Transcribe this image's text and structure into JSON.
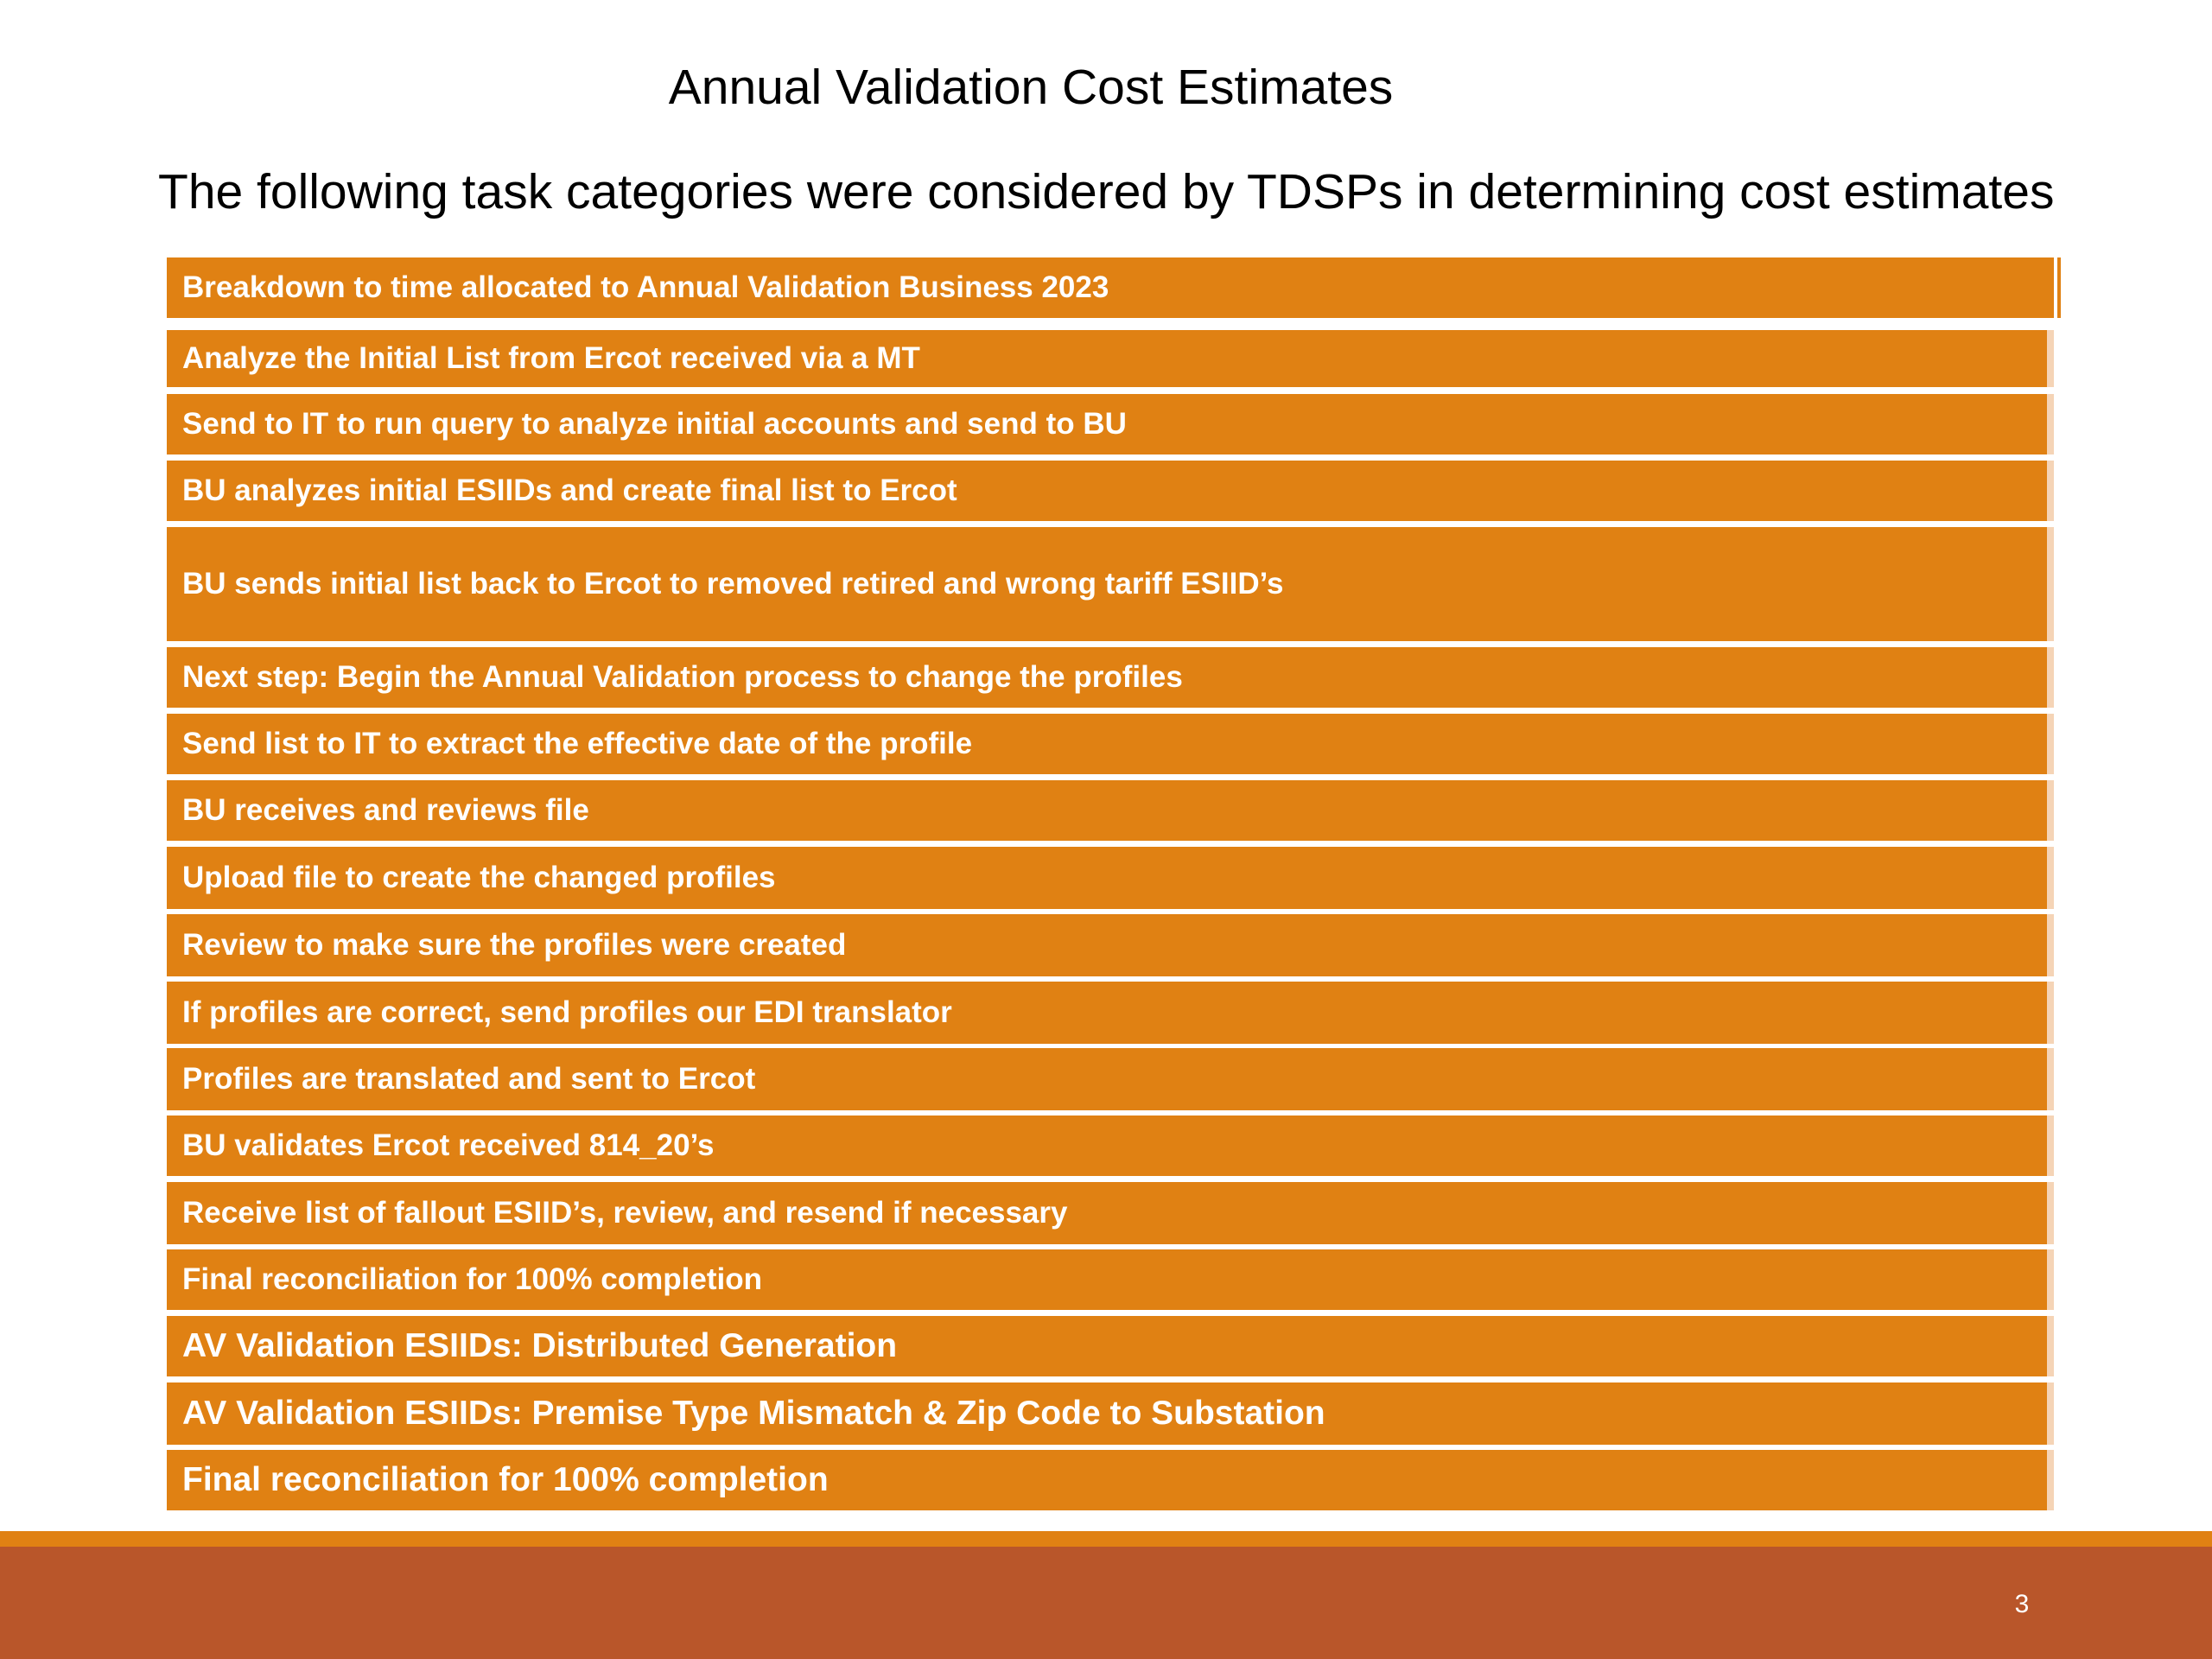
{
  "slide": {
    "title": "Annual Validation Cost Estimates",
    "subtitle": "The following task categories were considered by TDSPs in determining cost estimates",
    "page_number": "3"
  },
  "tasks": [
    "Breakdown to time allocated to Annual Validation Business 2023",
    "Analyze the Initial List from Ercot received via a MT",
    "Send to IT to run query to analyze initial accounts and send to BU",
    "BU analyzes initial ESIIDs and create final list to Ercot",
    "BU sends initial list back to Ercot to removed retired and wrong tariff ESIID’s",
    "Next step: Begin the Annual Validation process to change the profiles",
    "Send list to IT to extract the effective date of the profile",
    "BU receives and reviews file",
    "Upload file to create the changed profiles",
    "Review to make sure the profiles were created",
    "If profiles are correct, send profiles our EDI translator",
    "Profiles are translated and sent to Ercot",
    "BU validates Ercot received 814_20’s",
    "Receive list of fallout ESIID’s, review, and resend if necessary",
    "Final reconciliation for 100% completion",
    "AV Validation ESIIDs: Distributed Generation",
    "AV Validation ESIIDs: Premise Type Mismatch & Zip Code to Substation",
    "Final reconciliation for 100% completion"
  ],
  "colors": {
    "row_fill": "#e08113",
    "footer_band": "#b9562a",
    "footer_line": "#e08113"
  }
}
